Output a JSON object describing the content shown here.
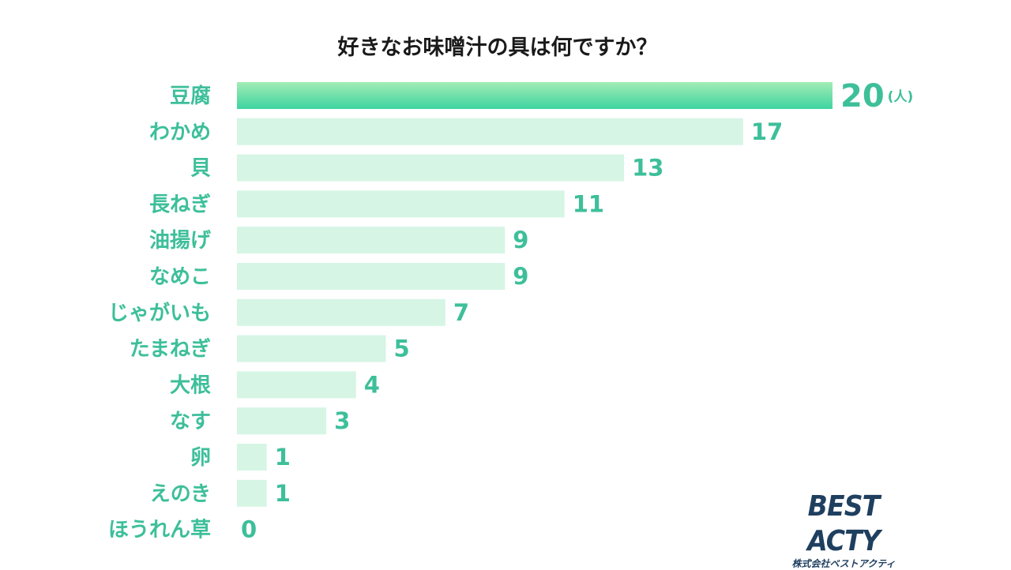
{
  "chart_data": {
    "type": "bar",
    "orientation": "horizontal",
    "title": "好きなお味噌汁の具は何ですか？",
    "unit": "(人)",
    "categories": [
      "豆腐",
      "わかめ",
      "貝",
      "長ねぎ",
      "油揚げ",
      "なめこ",
      "じゃがいも",
      "たまねぎ",
      "大根",
      "なす",
      "卵",
      "えのき",
      "ほうれん草"
    ],
    "values": [
      20,
      17,
      13,
      11,
      9,
      9,
      7,
      5,
      4,
      3,
      1,
      1,
      0
    ],
    "highlight_index": 0,
    "xlim": [
      0,
      20
    ],
    "grid": false,
    "legend": "none"
  },
  "colors": {
    "bar": "#d6f5e5",
    "highlight_top": "#a3ecb5",
    "highlight_bottom": "#3dd4a0",
    "label": "#3dbf9a",
    "value": "#3dbf9a",
    "title": "#1a1a1a",
    "logo": "#1f3f5f"
  },
  "logo": {
    "main": "BEST ACTY",
    "sub": "株式会社ベストアクティ"
  }
}
